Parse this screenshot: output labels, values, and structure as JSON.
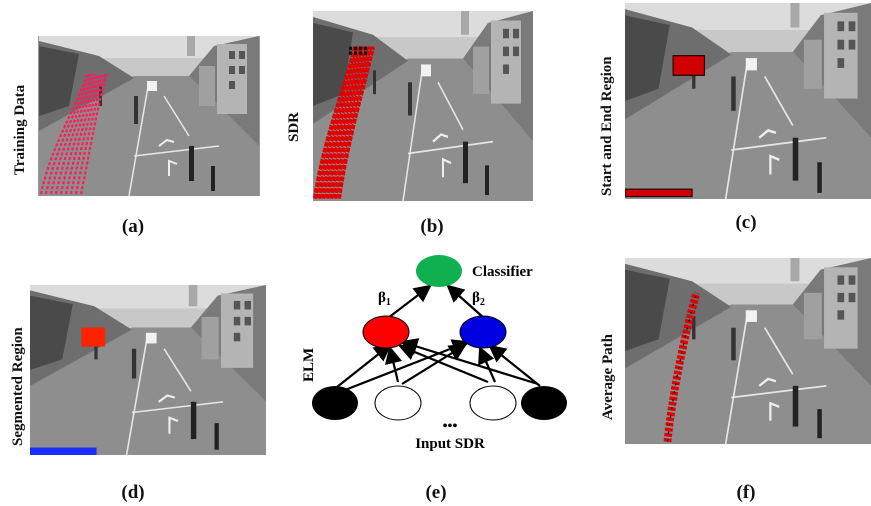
{
  "panels": {
    "a": {
      "side_label": "Training Data",
      "caption": "(a)"
    },
    "b": {
      "side_label": "SDR",
      "caption": "(b)"
    },
    "c": {
      "side_label": "Start and End Region",
      "caption": "(c)"
    },
    "d": {
      "side_label": "Segmented Region",
      "caption": "(d)"
    },
    "e": {
      "caption": "(e)"
    },
    "f": {
      "side_label": "Average Path",
      "caption": "(f)"
    }
  },
  "network": {
    "classifier_label": "Classifier",
    "beta1_label": "β",
    "beta1_sub": "1",
    "beta2_label": "β",
    "beta2_sub": "2",
    "side_label": "ELM",
    "ellipsis": "•••",
    "input_label": "Input SDR"
  },
  "colors": {
    "trajectory_pink": "#ff1a5a",
    "sdr_red": "#e00000",
    "segment_blue": "#1a2cff",
    "classifier_green": "#10b050",
    "hidden_red": "#ff0000",
    "hidden_blue": "#0000e0"
  }
}
